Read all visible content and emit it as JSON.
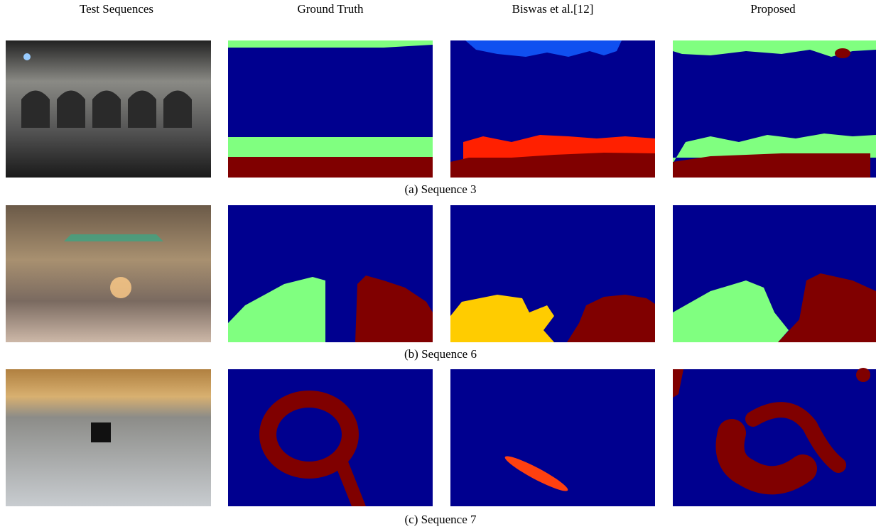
{
  "headers": [
    "Test Sequences",
    "Ground Truth",
    "Biswas et al.[12]",
    "Proposed"
  ],
  "captions": [
    "(a) Sequence 3",
    "(b) Sequence 6",
    "(c) Sequence 7"
  ]
}
